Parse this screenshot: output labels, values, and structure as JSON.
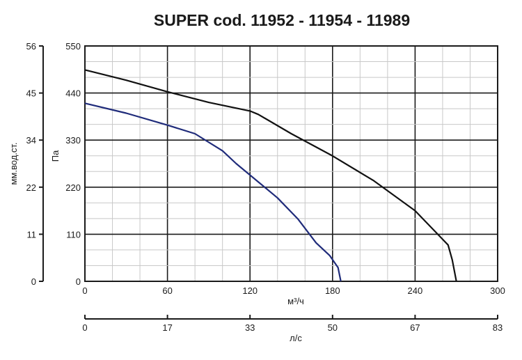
{
  "chart_data": {
    "type": "line",
    "title": "SUPER cod. 11952 - 11954 - 11989",
    "xlabel": "м³/ч",
    "ylabel": "Па",
    "xlim": [
      0,
      300
    ],
    "ylim": [
      0,
      550
    ],
    "x_ticks": [
      "0",
      "60",
      "120",
      "180",
      "240",
      "300"
    ],
    "y_ticks": [
      "0",
      "110",
      "220",
      "330",
      "440",
      "550"
    ],
    "y2_label": "мм.вод.ст.",
    "y2_ticks": [
      "0",
      "11",
      "22",
      "34",
      "45",
      "56"
    ],
    "x2_label": "л/с",
    "x2_ticks": [
      "0",
      "17",
      "33",
      "50",
      "67",
      "83"
    ],
    "grid": true,
    "series": [
      {
        "color": "#111111",
        "x": [
          0,
          30,
          60,
          90,
          120,
          126,
          150,
          180,
          210,
          240,
          264,
          267,
          270
        ],
        "y": [
          494,
          470,
          443,
          418,
          398,
          390,
          345,
          293,
          235,
          165,
          85,
          50,
          0
        ]
      },
      {
        "color": "#1f2b7a",
        "x": [
          0,
          30,
          60,
          80,
          100,
          110,
          125,
          140,
          155,
          168,
          178,
          184,
          186
        ],
        "y": [
          416,
          393,
          365,
          345,
          305,
          275,
          235,
          195,
          145,
          90,
          60,
          32,
          0
        ]
      }
    ]
  }
}
